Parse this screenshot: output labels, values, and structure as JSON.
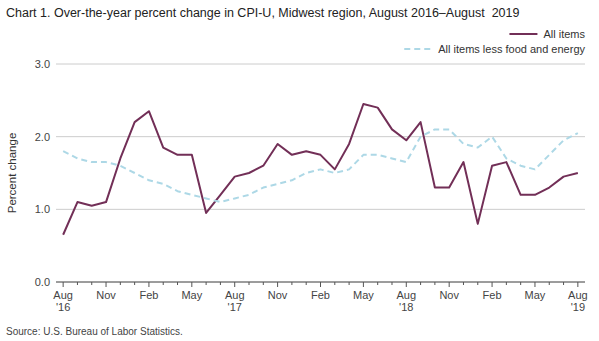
{
  "chart_data": {
    "type": "line",
    "title": "Chart 1. Over-the-year percent change in CPI-U, Midwest region, August 2016–August  2019",
    "y_label": "Percent change",
    "annotations": [
      "Source: U.S. Bureau of Labor Statistics."
    ],
    "categories": [
      "Aug\n'16",
      null,
      null,
      "Nov",
      null,
      null,
      "Feb",
      null,
      null,
      "May",
      null,
      null,
      "Aug\n'17",
      null,
      null,
      "Nov",
      null,
      null,
      "Feb",
      null,
      null,
      "May",
      null,
      null,
      "Aug\n'18",
      null,
      null,
      "Nov",
      null,
      null,
      "Feb",
      null,
      null,
      "May",
      null,
      null,
      "Aug\n'19"
    ],
    "series": [
      {
        "name": "All items",
        "color": "#722f57",
        "line_style": "solid",
        "values": [
          0.65,
          1.1,
          1.05,
          1.1,
          1.7,
          2.2,
          2.35,
          1.85,
          1.75,
          1.75,
          0.95,
          1.2,
          1.45,
          1.5,
          1.6,
          1.9,
          1.75,
          1.8,
          1.75,
          1.55,
          1.9,
          2.45,
          2.4,
          2.1,
          1.95,
          2.2,
          1.3,
          1.3,
          1.65,
          0.8,
          1.6,
          1.65,
          1.2,
          1.2,
          1.3,
          1.45,
          1.5
        ]
      },
      {
        "name": "All items less food and energy",
        "color": "#add8e6",
        "line_style": "dashed",
        "values": [
          1.8,
          1.7,
          1.65,
          1.65,
          1.6,
          1.5,
          1.4,
          1.35,
          1.25,
          1.2,
          1.15,
          1.1,
          1.15,
          1.2,
          1.3,
          1.35,
          1.4,
          1.5,
          1.55,
          1.5,
          1.55,
          1.75,
          1.75,
          1.7,
          1.65,
          2.0,
          2.1,
          2.1,
          1.9,
          1.85,
          2.0,
          1.7,
          1.6,
          1.55,
          1.75,
          1.95,
          2.05
        ]
      }
    ],
    "ylim": [
      0.0,
      3.0
    ],
    "yticks": [
      {
        "value": 0.0,
        "label": "0.0"
      },
      {
        "value": 1.0,
        "label": "1.0"
      },
      {
        "value": 2.0,
        "label": "2.0"
      },
      {
        "value": 3.0,
        "label": "3.0"
      }
    ],
    "grid": true,
    "legend": "upper right"
  }
}
